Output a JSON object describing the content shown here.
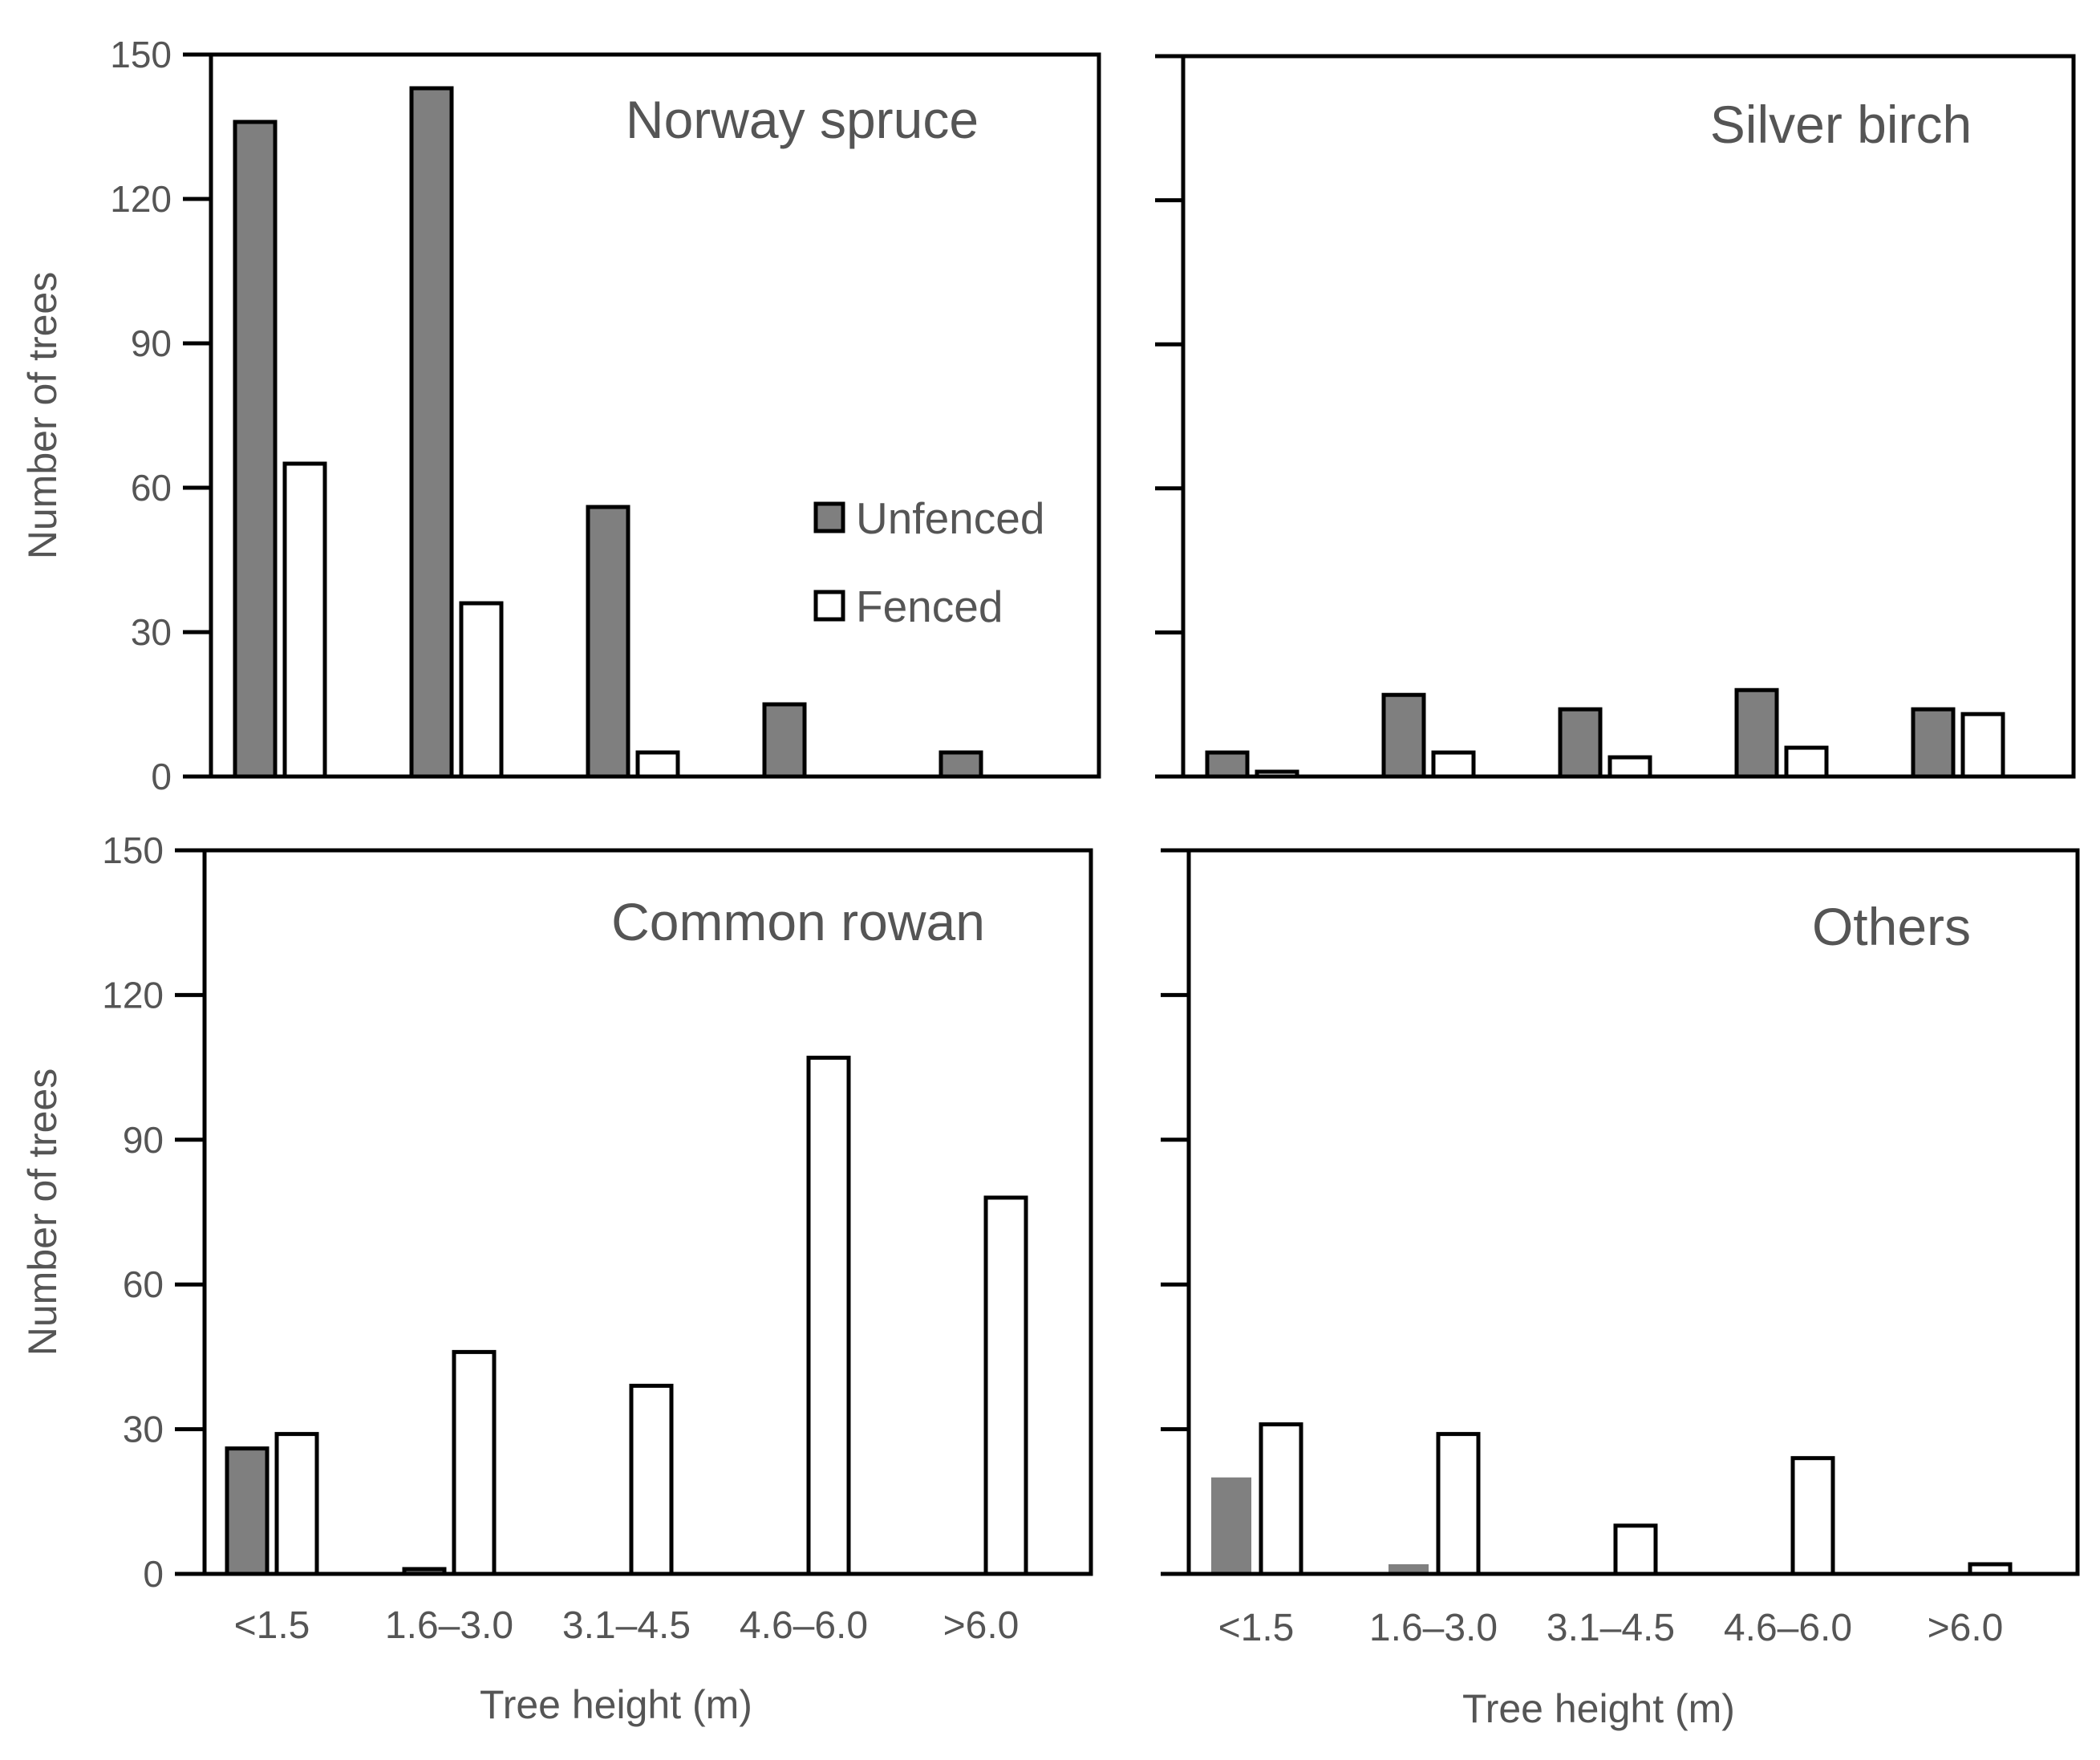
{
  "figure": {
    "y_axis_label": "Number of trees",
    "x_axis_label": "Tree height (m)",
    "legend": [
      {
        "label": "Unfenced",
        "color": "#7f7f7f"
      },
      {
        "label": "Fenced",
        "color": "#ffffff"
      }
    ]
  },
  "colors": {
    "unfenced": "#7f7f7f",
    "fenced": "#ffffff",
    "axis": "#000000",
    "text": "#555555"
  },
  "chart_data": [
    {
      "type": "bar",
      "title": "Norway spruce",
      "categories": [
        "<1.5",
        "1.6–3.0",
        "3.1–4.5",
        "4.6–6.0",
        ">6.0"
      ],
      "series": [
        {
          "name": "Unfenced",
          "values": [
            136,
            143,
            56,
            15,
            5
          ]
        },
        {
          "name": "Fenced",
          "values": [
            65,
            36,
            5,
            0,
            0
          ]
        }
      ],
      "ylabel": "Number of trees",
      "xlabel": "",
      "ylim": [
        0,
        150
      ],
      "yticks": [
        "0",
        "30",
        "60",
        "90",
        "120",
        "150"
      ],
      "legend": "right"
    },
    {
      "type": "bar",
      "title": "Silver birch",
      "categories": [
        "<1.5",
        "1.6–3.0",
        "3.1–4.5",
        "4.6–6.0",
        ">6.0"
      ],
      "series": [
        {
          "name": "Unfenced",
          "values": [
            5,
            17,
            14,
            18,
            14
          ]
        },
        {
          "name": "Fenced",
          "values": [
            1,
            5,
            4,
            6,
            13
          ]
        }
      ],
      "ylabel": "",
      "xlabel": "",
      "ylim": [
        0,
        150
      ],
      "yticks": []
    },
    {
      "type": "bar",
      "title": "Common rowan",
      "categories": [
        "<1.5",
        "1.6–3.0",
        "3.1–4.5",
        "4.6–6.0",
        ">6.0"
      ],
      "series": [
        {
          "name": "Unfenced",
          "values": [
            26,
            1,
            0,
            0,
            0
          ]
        },
        {
          "name": "Fenced",
          "values": [
            29,
            46,
            39,
            107,
            78
          ]
        }
      ],
      "ylabel": "Number of trees",
      "xlabel": "Tree height (m)",
      "ylim": [
        0,
        150
      ],
      "yticks": [
        "0",
        "30",
        "60",
        "90",
        "120",
        "150"
      ]
    },
    {
      "type": "bar",
      "title": "Others",
      "categories": [
        "<1.5",
        "1.6–3.0",
        "3.1–4.5",
        "4.6–6.0",
        ">6.0"
      ],
      "series": [
        {
          "name": "Unfenced",
          "values": [
            20,
            2,
            0,
            0,
            0
          ]
        },
        {
          "name": "Fenced",
          "values": [
            31,
            29,
            10,
            24,
            2
          ]
        }
      ],
      "ylabel": "",
      "xlabel": "Tree height (m)",
      "ylim": [
        0,
        150
      ],
      "yticks": []
    }
  ]
}
